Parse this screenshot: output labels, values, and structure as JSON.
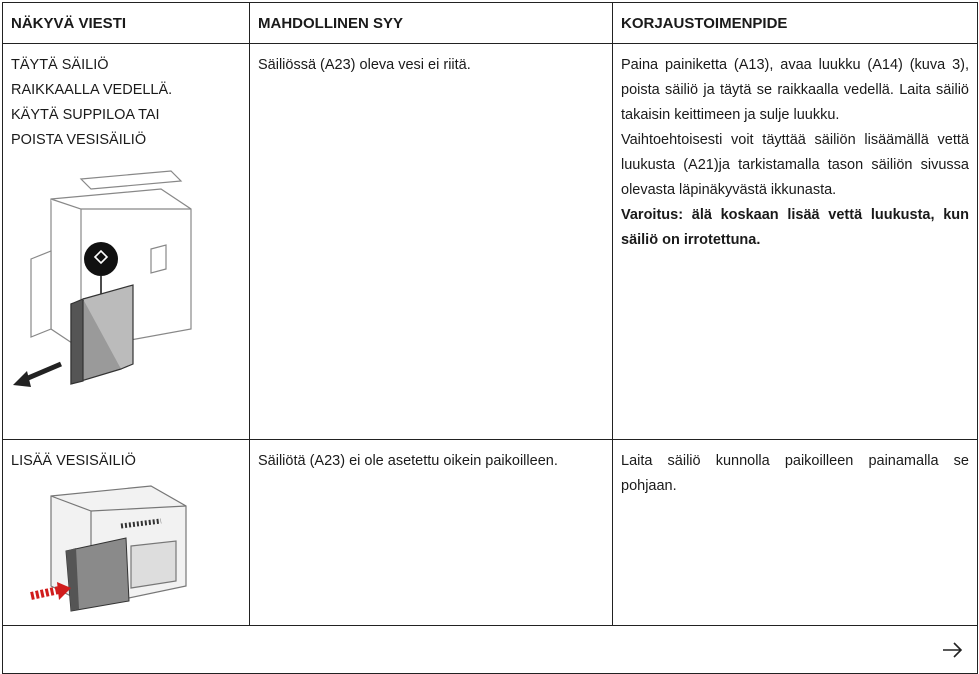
{
  "table": {
    "header": [
      "NÄKYVÄ VIESTI",
      "MAHDOLLINEN SYY",
      "KORJAUSTOIMENPIDE"
    ],
    "rows": [
      [
        "TÄYTÄ SÄILIÖ RAIKKAALLA VEDELLÄ. KÄYTÄ SUPPILOA TAI POISTA VESISÄILIÖ",
        "Säiliössä (A23) oleva vesi ei riitä.",
        [
          "Paina painiketta (A13), avaa luukku (A14) (kuva 3), poista säiliö ja täytä se raikkaalla vedellä. Laita säiliö takaisin keittimeen ja sulje luukku.",
          "Vaihtoehtoisesti voit täyttää säiliön lisäämällä vettä luukusta (A21)ja tarkistamalla tason säiliön sivussa olevasta läpinäkyvästä ikkunasta.",
          "Varoitus: älä koskaan lisää vettä luukusta, kun säiliö on irrotettuna."
        ]
      ],
      [
        "LISÄÄ VESISÄILIÖ",
        "Säiliötä (A23) ei ole asetettu oikein paikoilleen.",
        [
          "Laita säiliö kunnolla paikoilleen painamalla se pohjaan."
        ]
      ]
    ]
  }
}
